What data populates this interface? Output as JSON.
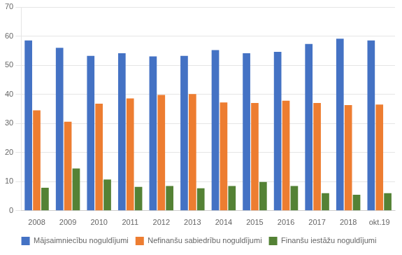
{
  "chart_data": {
    "type": "bar",
    "categories": [
      "2008",
      "2009",
      "2010",
      "2011",
      "2012",
      "2013",
      "2014",
      "2015",
      "2016",
      "2017",
      "2018",
      "okt.19"
    ],
    "series": [
      {
        "name": "Mājsaimniecību noguldījumi",
        "color": "#4472C4",
        "values": [
          58.5,
          56.0,
          53.2,
          54.1,
          53.0,
          53.2,
          55.2,
          54.1,
          54.6,
          57.3,
          59.1,
          58.5
        ]
      },
      {
        "name": "Nefinanšu sabiedrību noguldījumi",
        "color": "#ED7D31",
        "values": [
          34.5,
          30.6,
          36.8,
          38.6,
          39.8,
          40.1,
          37.2,
          37.0,
          37.8,
          37.0,
          36.3,
          36.5
        ]
      },
      {
        "name": "Finanšu iestāžu noguldījumi",
        "color": "#548235",
        "values": [
          7.9,
          14.5,
          10.7,
          8.2,
          8.5,
          7.7,
          8.5,
          9.9,
          8.5,
          6.0,
          5.5,
          6.0
        ]
      }
    ],
    "ylim": [
      0,
      70
    ],
    "yticks": [
      0,
      10,
      20,
      30,
      40,
      50,
      60,
      70
    ],
    "grid": true,
    "legend": "bottom"
  }
}
